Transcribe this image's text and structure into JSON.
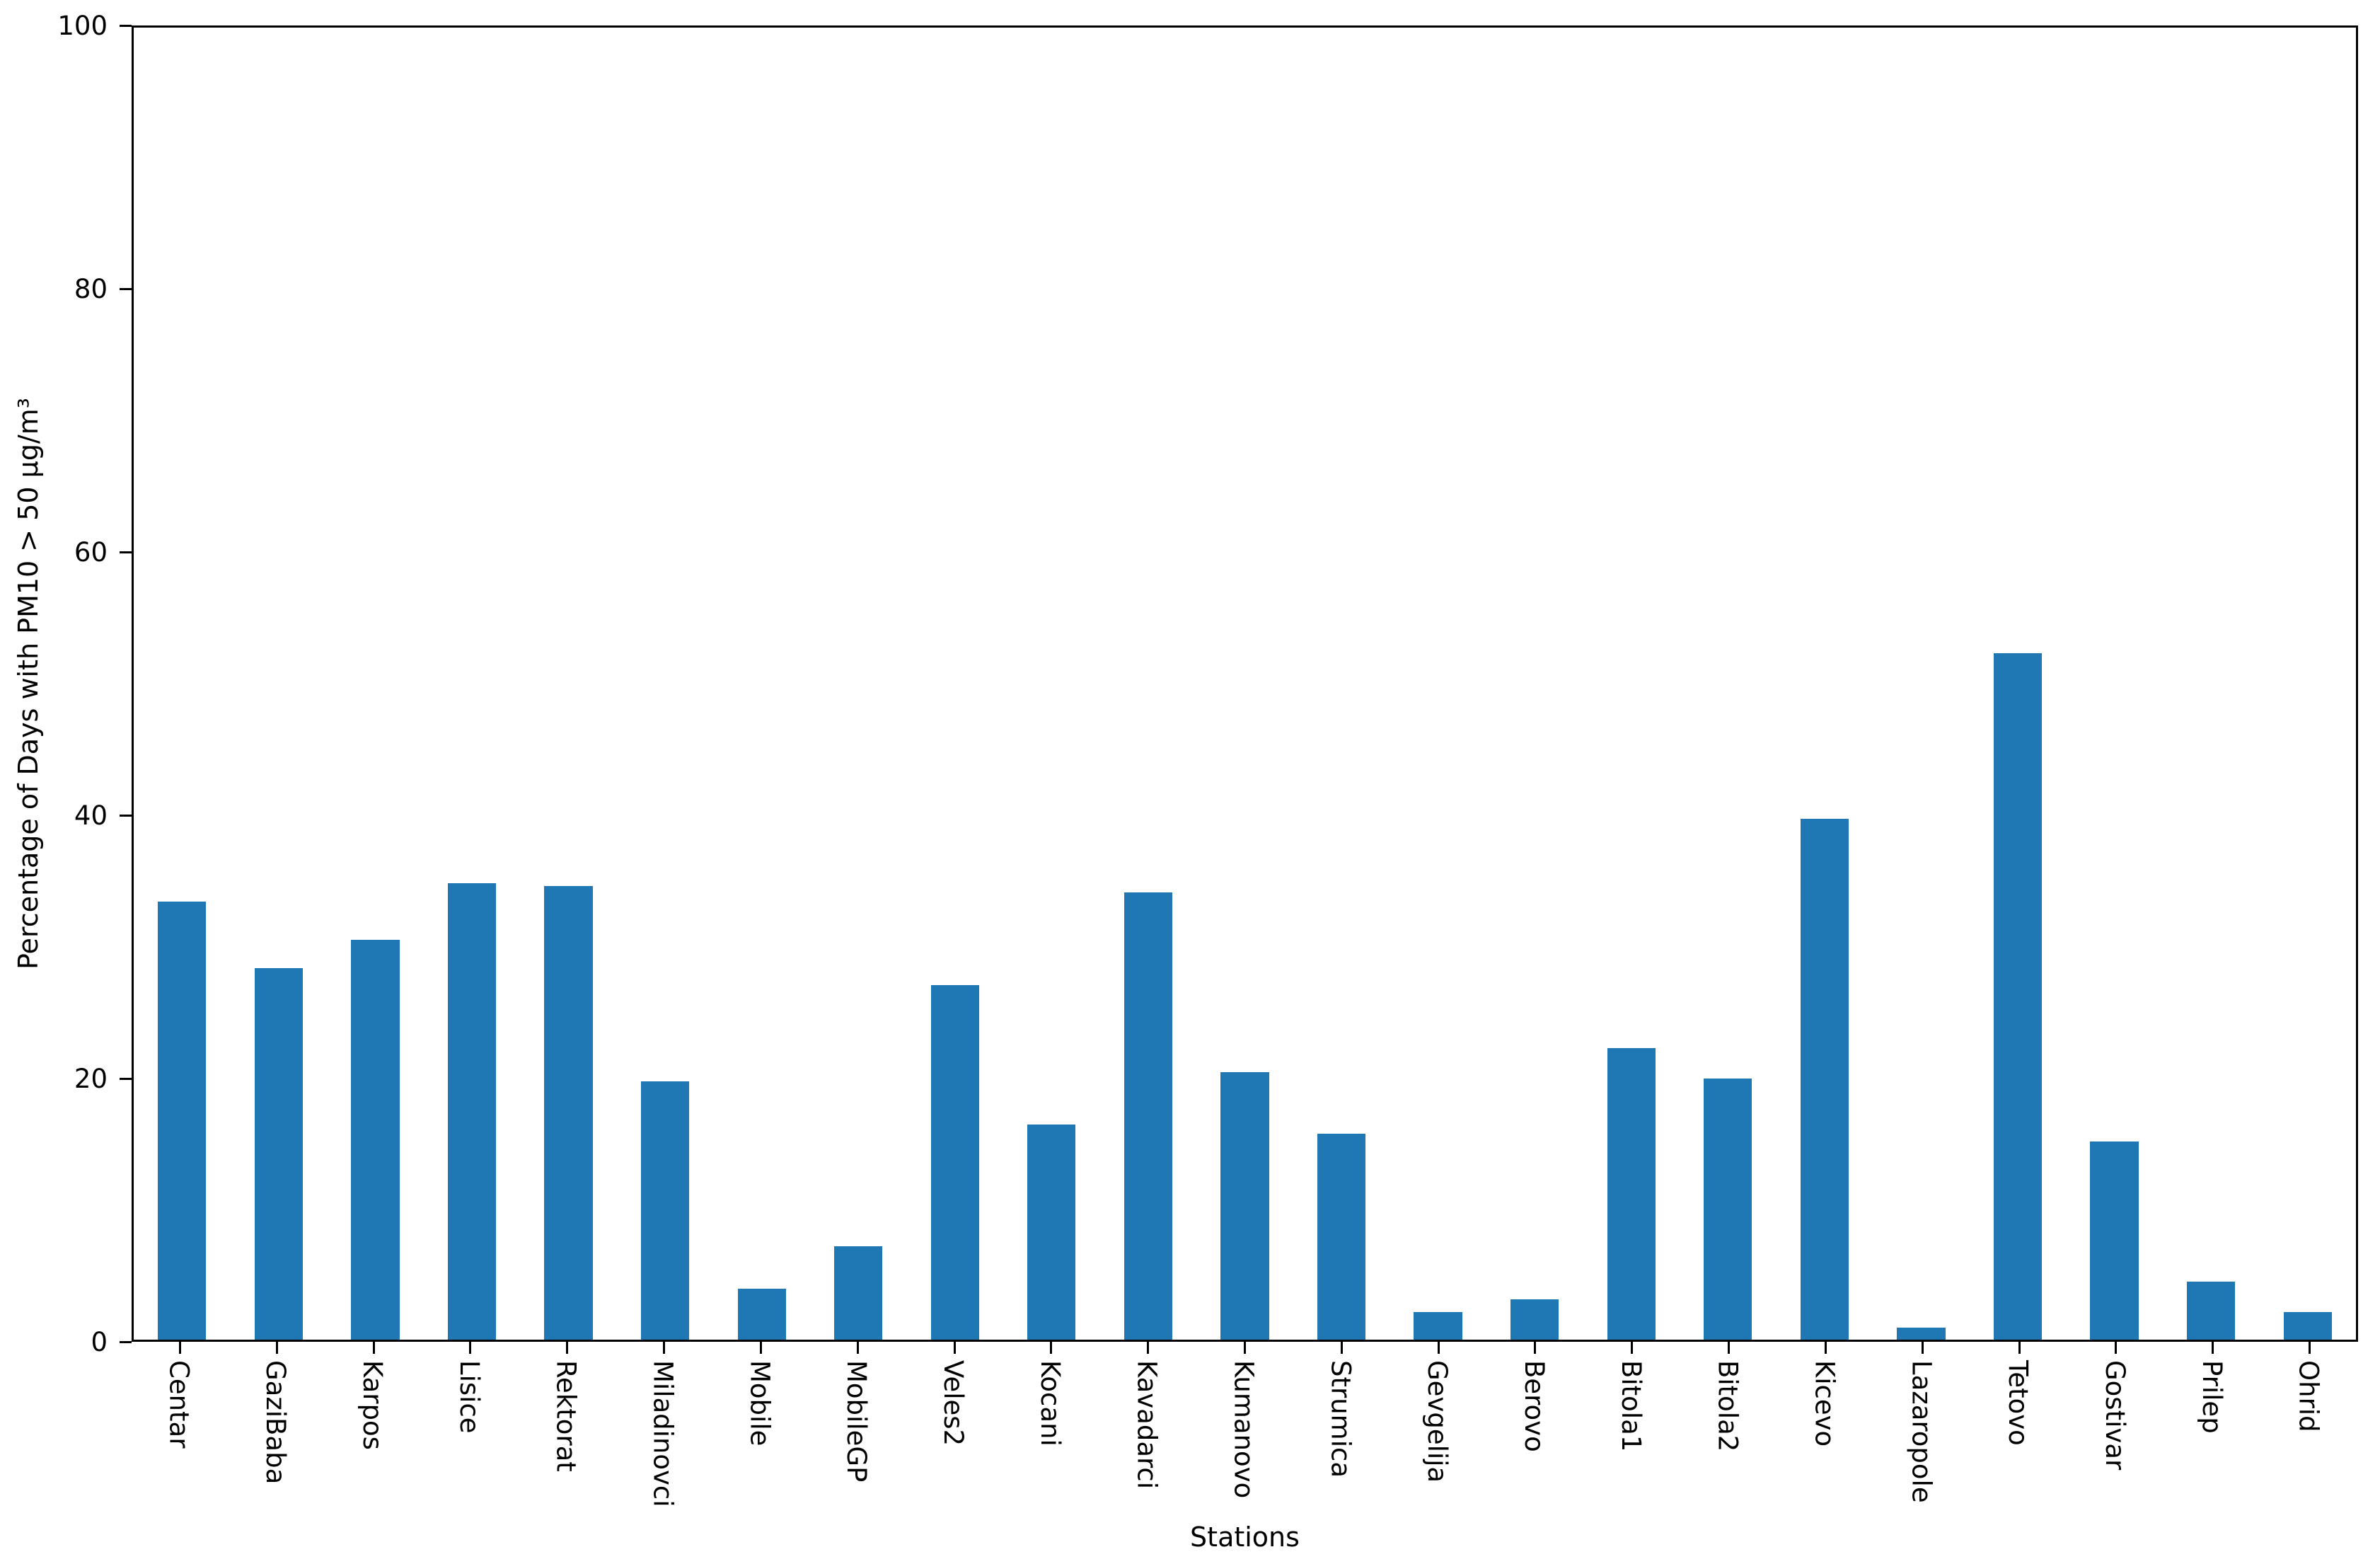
{
  "figure": {
    "background_color": "#ffffff",
    "axis_color": "#000000"
  },
  "chart_data": {
    "type": "bar",
    "title": "",
    "xlabel": "Stations",
    "ylabel": "Percentage of Days with PM10 > 50 µg/m³",
    "ylim": [
      0,
      100
    ],
    "yticks": [
      0,
      20,
      40,
      60,
      80,
      100
    ],
    "grid": "off",
    "legend": "none",
    "bar_color": "#1f77b4",
    "categories": [
      "Centar",
      "GaziBaba",
      "Karpos",
      "Lisice",
      "Rektorat",
      "Miladinovci",
      "Mobile",
      "MobileGP",
      "Veles2",
      "Kocani",
      "Kavadarci",
      "Kumanovo",
      "Strumica",
      "Gevgelija",
      "Berovo",
      "Bitola1",
      "Bitola2",
      "Kicevo",
      "Lazaropole",
      "Tetovo",
      "Gostivar",
      "Prilep",
      "Ohrid"
    ],
    "values": [
      33.4,
      28.3,
      30.5,
      34.8,
      34.6,
      19.7,
      3.9,
      7.1,
      27.0,
      16.4,
      34.1,
      20.4,
      15.7,
      2.1,
      3.1,
      22.2,
      19.9,
      39.7,
      0.9,
      52.3,
      15.1,
      4.4,
      2.1
    ]
  }
}
